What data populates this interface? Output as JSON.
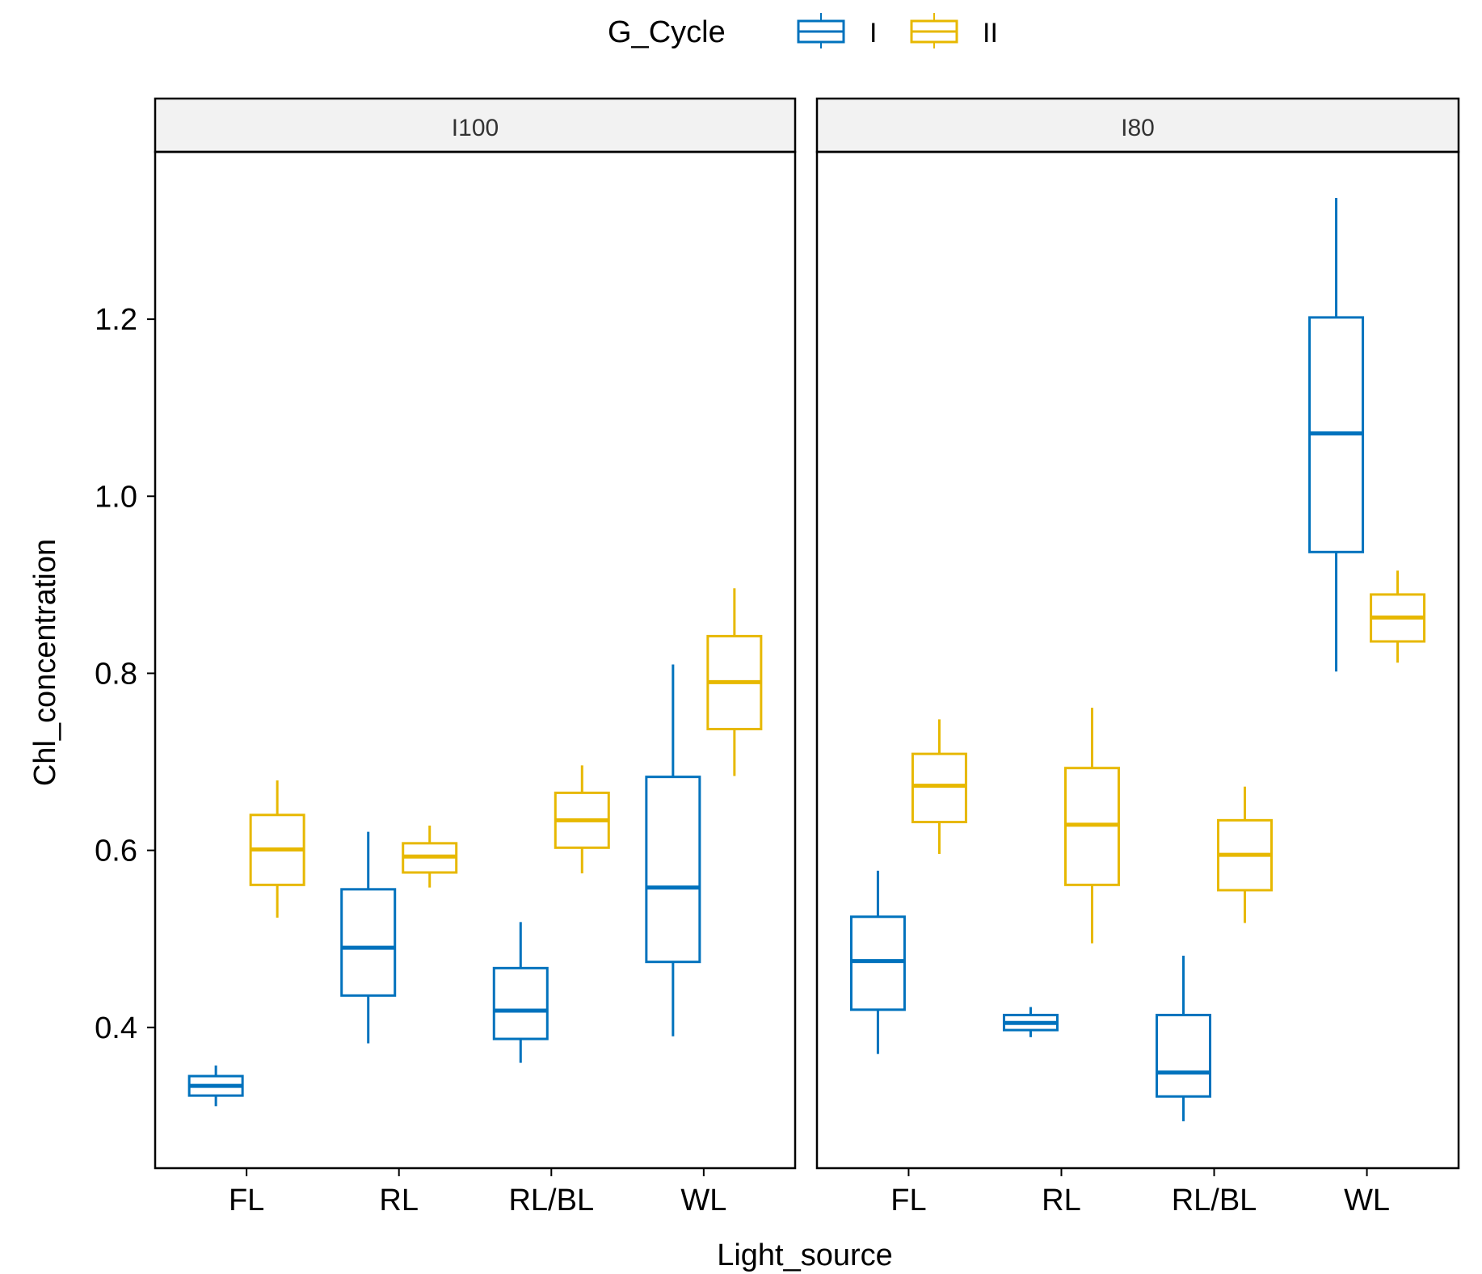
{
  "chart_data": {
    "type": "boxplot",
    "xlabel": "Light_source",
    "ylabel": "Chl_concentration",
    "ylim": [
      0.241,
      1.389
    ],
    "yticks": [
      0.4,
      0.6,
      0.8,
      1.0,
      1.2
    ],
    "ytick_labels": [
      "0.4",
      "0.6",
      "0.8",
      "1.0",
      "1.2"
    ],
    "categories": [
      "FL",
      "RL",
      "RL/BL",
      "WL"
    ],
    "legend": {
      "title": "G_Cycle",
      "position": "top",
      "entries": [
        {
          "name": "I",
          "color": "#0072BD"
        },
        {
          "name": "II",
          "color": "#E7B800"
        }
      ]
    },
    "panels": [
      {
        "title": "I100",
        "series": [
          {
            "name": "I",
            "boxes": [
              {
                "min": 0.311,
                "q1": 0.323,
                "median": 0.334,
                "q3": 0.345,
                "max": 0.357
              },
              {
                "min": 0.382,
                "q1": 0.436,
                "median": 0.49,
                "q3": 0.556,
                "max": 0.621
              },
              {
                "min": 0.36,
                "q1": 0.387,
                "median": 0.419,
                "q3": 0.467,
                "max": 0.519
              },
              {
                "min": 0.39,
                "q1": 0.474,
                "median": 0.558,
                "q3": 0.683,
                "max": 0.81
              }
            ]
          },
          {
            "name": "II",
            "boxes": [
              {
                "min": 0.524,
                "q1": 0.561,
                "median": 0.601,
                "q3": 0.64,
                "max": 0.679
              },
              {
                "min": 0.558,
                "q1": 0.575,
                "median": 0.593,
                "q3": 0.608,
                "max": 0.628
              },
              {
                "min": 0.574,
                "q1": 0.603,
                "median": 0.634,
                "q3": 0.665,
                "max": 0.696
              },
              {
                "min": 0.684,
                "q1": 0.737,
                "median": 0.79,
                "q3": 0.842,
                "max": 0.896
              }
            ]
          }
        ]
      },
      {
        "title": "I80",
        "series": [
          {
            "name": "I",
            "boxes": [
              {
                "min": 0.37,
                "q1": 0.42,
                "median": 0.475,
                "q3": 0.525,
                "max": 0.577
              },
              {
                "min": 0.389,
                "q1": 0.397,
                "median": 0.405,
                "q3": 0.414,
                "max": 0.423
              },
              {
                "min": 0.294,
                "q1": 0.322,
                "median": 0.349,
                "q3": 0.414,
                "max": 0.481
              },
              {
                "min": 0.802,
                "q1": 0.937,
                "median": 1.071,
                "q3": 1.202,
                "max": 1.337
              }
            ]
          },
          {
            "name": "II",
            "boxes": [
              {
                "min": 0.596,
                "q1": 0.632,
                "median": 0.673,
                "q3": 0.709,
                "max": 0.748
              },
              {
                "min": 0.495,
                "q1": 0.561,
                "median": 0.629,
                "q3": 0.693,
                "max": 0.761
              },
              {
                "min": 0.518,
                "q1": 0.555,
                "median": 0.595,
                "q3": 0.634,
                "max": 0.672
              },
              {
                "min": 0.812,
                "q1": 0.836,
                "median": 0.863,
                "q3": 0.889,
                "max": 0.916
              }
            ]
          }
        ]
      }
    ]
  }
}
